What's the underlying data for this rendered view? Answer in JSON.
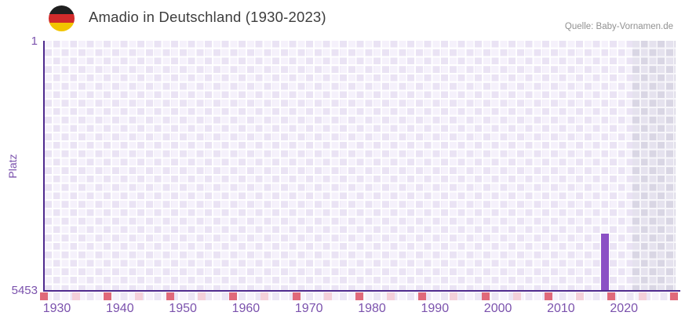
{
  "header": {
    "title": "Amadio in Deutschland (1930-2023)",
    "source": "Quelle: Baby-Vornamen.de",
    "flag_icon": "german-flag-icon"
  },
  "chart_data": {
    "type": "bar",
    "title": "Amadio in Deutschland (1930-2023)",
    "ylabel": "Platz",
    "xlabel": "",
    "y_axis": {
      "top_label": "1",
      "bottom_label": "5453",
      "min": 1,
      "max": 5453,
      "inverted": true
    },
    "x_axis": {
      "tick_labels": [
        "1930",
        "1940",
        "1950",
        "1960",
        "1970",
        "1980",
        "1990",
        "2000",
        "2010",
        "2020"
      ],
      "tick_years": [
        1930,
        1940,
        1950,
        1960,
        1970,
        1980,
        1990,
        2000,
        2010,
        2020
      ],
      "range_start_year": 1928,
      "range_end_year": 2029
    },
    "bars": [
      {
        "year": 2017,
        "platz": 4210
      }
    ],
    "no_data_region": {
      "start_year": 2022,
      "end": "right-edge"
    },
    "axis_strip_marks": [
      {
        "year": 1928,
        "shade": "dark"
      },
      {
        "year": 1933,
        "shade": "light"
      },
      {
        "year": 1938,
        "shade": "dark"
      },
      {
        "year": 1943,
        "shade": "light"
      },
      {
        "year": 1948,
        "shade": "dark"
      },
      {
        "year": 1953,
        "shade": "light"
      },
      {
        "year": 1958,
        "shade": "dark"
      },
      {
        "year": 1963,
        "shade": "light"
      },
      {
        "year": 1968,
        "shade": "dark"
      },
      {
        "year": 1973,
        "shade": "light"
      },
      {
        "year": 1978,
        "shade": "dark"
      },
      {
        "year": 1983,
        "shade": "light"
      },
      {
        "year": 1988,
        "shade": "dark"
      },
      {
        "year": 1993,
        "shade": "light"
      },
      {
        "year": 1998,
        "shade": "dark"
      },
      {
        "year": 2003,
        "shade": "light"
      },
      {
        "year": 2008,
        "shade": "dark"
      },
      {
        "year": 2013,
        "shade": "light"
      },
      {
        "year": 2018,
        "shade": "dark"
      },
      {
        "year": 2023,
        "shade": "light"
      },
      {
        "year": 2028,
        "shade": "dark"
      }
    ],
    "legend": null,
    "grid": "checkerboard",
    "colors": {
      "bar": "#8b50c5",
      "axis_line": "#4f2a8e",
      "axis_text": "#7b52ad",
      "mark_dark": "#e0697a",
      "mark_light": "#f4d0da",
      "grid_cell_a": "#eae3f4",
      "grid_cell_b": "#f5f1fb",
      "future_cell_a": "#d9d6e4",
      "future_cell_b": "#e5e2ee",
      "title_text": "#3d3d3d",
      "source_text": "#919191",
      "flag_black": "#1f1f1f",
      "flag_red": "#d22b2b",
      "flag_gold": "#f2c500"
    }
  }
}
